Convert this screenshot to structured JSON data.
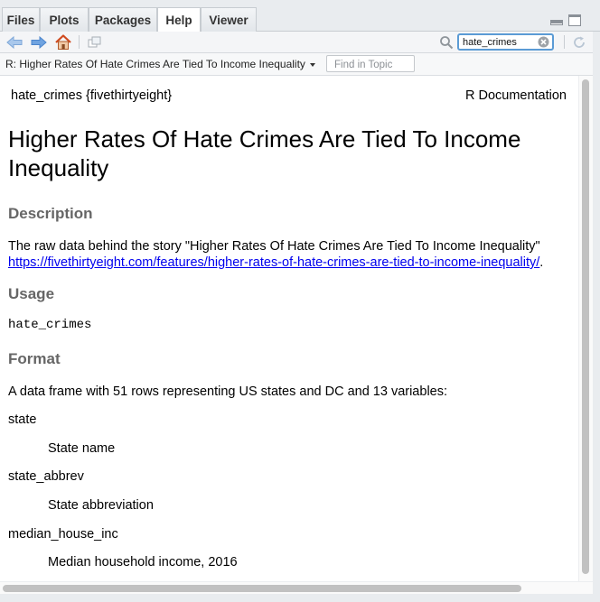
{
  "tabs": [
    {
      "label": "Files"
    },
    {
      "label": "Plots"
    },
    {
      "label": "Packages"
    },
    {
      "label": "Help",
      "active": true
    },
    {
      "label": "Viewer"
    }
  ],
  "search": {
    "value": "hate_crimes"
  },
  "topic": {
    "title": "R: Higher Rates Of Hate Crimes Are Tied To Income Inequality",
    "find_placeholder": "Find in Topic"
  },
  "doc": {
    "header_left": "hate_crimes {fivethirtyeight}",
    "header_right": "R Documentation",
    "title": "Higher Rates Of Hate Crimes Are Tied To Income Inequality",
    "description_heading": "Description",
    "description_text": "The raw data behind the story \"Higher Rates Of Hate Crimes Are Tied To Income Inequality\"",
    "description_link": "https://fivethirtyeight.com/features/higher-rates-of-hate-crimes-are-tied-to-income-inequality/",
    "description_trailer": ".",
    "usage_heading": "Usage",
    "usage_code": "hate_crimes",
    "format_heading": "Format",
    "format_text": "A data frame with 51 rows representing US states and DC and 13 variables:",
    "variables": [
      {
        "name": "state",
        "desc": "State name"
      },
      {
        "name": "state_abbrev",
        "desc": "State abbreviation"
      },
      {
        "name": "median_house_inc",
        "desc": "Median household income, 2016"
      }
    ]
  },
  "icons": {
    "back": "arrow-left-icon",
    "forward": "arrow-right-icon",
    "home": "home-icon",
    "popout": "popout-icon",
    "search": "magnifier-icon",
    "clear": "clear-circle-icon",
    "refresh": "refresh-icon"
  }
}
